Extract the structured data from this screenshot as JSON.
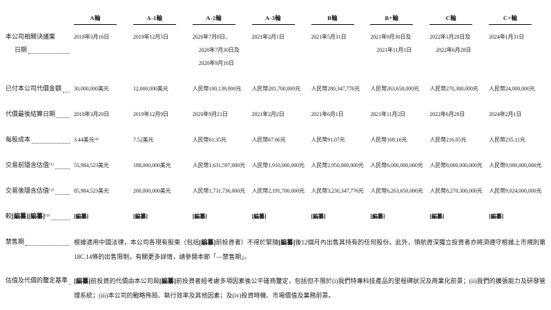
{
  "table": {
    "redacted_token": "[編纂]",
    "columns": [
      "A輪",
      "A-1輪",
      "A-2輪",
      "A-3輪",
      "B輪",
      "B+輪",
      "C輪",
      "C+輪"
    ],
    "rows": [
      {
        "label_lines": [
          "本公司相關決議案",
          "日期"
        ],
        "values": [
          [
            "2018年3月16日"
          ],
          [
            "2019年12月5日"
          ],
          [
            "2020年7月8日、",
            "2020年7月30日及",
            "2020年9月16日"
          ],
          [
            "2021年2月1日"
          ],
          [
            "2021年5月31日"
          ],
          [
            "2021年9月30日及",
            "2021年11月1日"
          ],
          [
            "2022年1月28日及",
            "2022年6月28日"
          ],
          [
            "2024年1月31日"
          ]
        ]
      },
      {
        "label_lines": [
          "已付本公司代價金額"
        ],
        "values": [
          [
            "30,000,000美元"
          ],
          [
            "12,000,000美元"
          ],
          [
            "人民幣100,139,000元"
          ],
          [
            "人民幣281,700,000元"
          ],
          [
            "人民幣280,347,776元"
          ],
          [
            "人民幣263,650,000元"
          ],
          [
            "人民幣270,300,000元"
          ],
          [
            "人民幣24,000,000元"
          ]
        ]
      },
      {
        "label_lines": [
          "代價最後結算日期"
        ],
        "values": [
          [
            "2018年3月20日"
          ],
          [
            "2019年12月9日"
          ],
          [
            "2020年9月21日"
          ],
          [
            "2021年2月2日"
          ],
          [
            "2021年6月1日"
          ],
          [
            "2021年11月2日"
          ],
          [
            "2022年6月28日"
          ],
          [
            "2024年2月1日"
          ]
        ]
      },
      {
        "label_lines": [
          "每股成本"
        ],
        "values": [
          [
            "3.44美元⁽⁴⁾"
          ],
          [
            "7.52美元"
          ],
          [
            "人民幣61.35元"
          ],
          [
            "人民幣67.66元"
          ],
          [
            "人民幣91.07元"
          ],
          [
            "人民幣169.16元"
          ],
          [
            "人民幣216.05元"
          ],
          [
            "人民幣235.11元"
          ]
        ]
      },
      {
        "label_lines": [
          "交易前隱含估值⁽¹⁾"
        ],
        "values": [
          [
            "55,984,523美元"
          ],
          [
            "188,000,000美元"
          ],
          [
            "人民幣1,631,597,000元"
          ],
          [
            "人民幣1,910,000,000元"
          ],
          [
            "人民幣2,950,000,000元"
          ],
          [
            "人民幣6,000,000,000元"
          ],
          [
            "人民幣8,000,000,000元"
          ],
          [
            "人民幣9,000,000,000元"
          ]
        ]
      },
      {
        "label_lines": [
          "交易後隱含估值⁽²⁾"
        ],
        "values": [
          [
            "85,984,523美元"
          ],
          [
            "200,000,000美元"
          ],
          [
            "人民幣1,731,736,000元"
          ],
          [
            "人民幣2,191,700,000元"
          ],
          [
            "人民幣3,230,347,776元"
          ],
          [
            "人民幣6,263,650,000元"
          ],
          [
            "人民幣8,270,300,000元"
          ],
          [
            "人民幣9,024,000,000元"
          ]
        ]
      },
      {
        "label_lines": [
          "較[編纂][編纂]⁽³⁾"
        ],
        "bold_values": true,
        "values": [
          [
            "[編纂]"
          ],
          [
            "[編纂]"
          ],
          [
            "[編纂]"
          ],
          [
            "[編纂]"
          ],
          [
            "[編纂]"
          ],
          [
            "[編纂]"
          ],
          [
            "[編纂]"
          ],
          [
            "[編纂]"
          ]
        ]
      }
    ],
    "paragraph_rows": [
      {
        "label": "禁售期",
        "text": "根據適用中國法律，本公司各現有股東（包括[編纂]前投資者）不得於緊隨[編纂]後12個月內出售其持有的任何股份。此外，領航資深獨立投資者亦將須遵守根據上市規則第18C.14條的出售限制，有關更多詳情，請參閱本節「—禁售期」。"
      },
      {
        "label": "估值及代價的釐定基準",
        "text": "[編纂]前投資的代價由本公司與[編纂]前投資者經考慮多項因素後公平磋商釐定，包括但不限於(i)我們特專科技產品的里程碑狀況及商業化前景；(ii)我們的擴張能力及研發管理系統；(iii)本公司的戰略佈局、執行效率及其他因素；及(iv)投資時機、市場價值及業務前景。"
      }
    ]
  }
}
